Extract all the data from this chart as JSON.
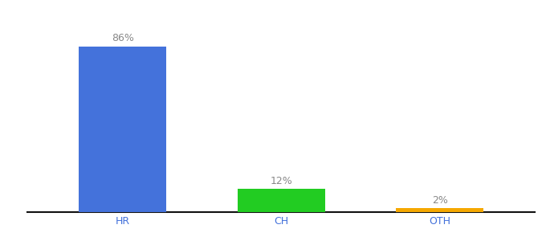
{
  "categories": [
    "HR",
    "CH",
    "OTH"
  ],
  "values": [
    86,
    12,
    2
  ],
  "bar_colors": [
    "#4472db",
    "#22cc22",
    "#f5a800"
  ],
  "labels": [
    "86%",
    "12%",
    "2%"
  ],
  "ylim": [
    0,
    100
  ],
  "label_color": "#888888",
  "label_fontsize": 9,
  "tick_color": "#4472db",
  "x_tick_fontsize": 9,
  "background_color": "#ffffff",
  "bar_width": 0.55
}
